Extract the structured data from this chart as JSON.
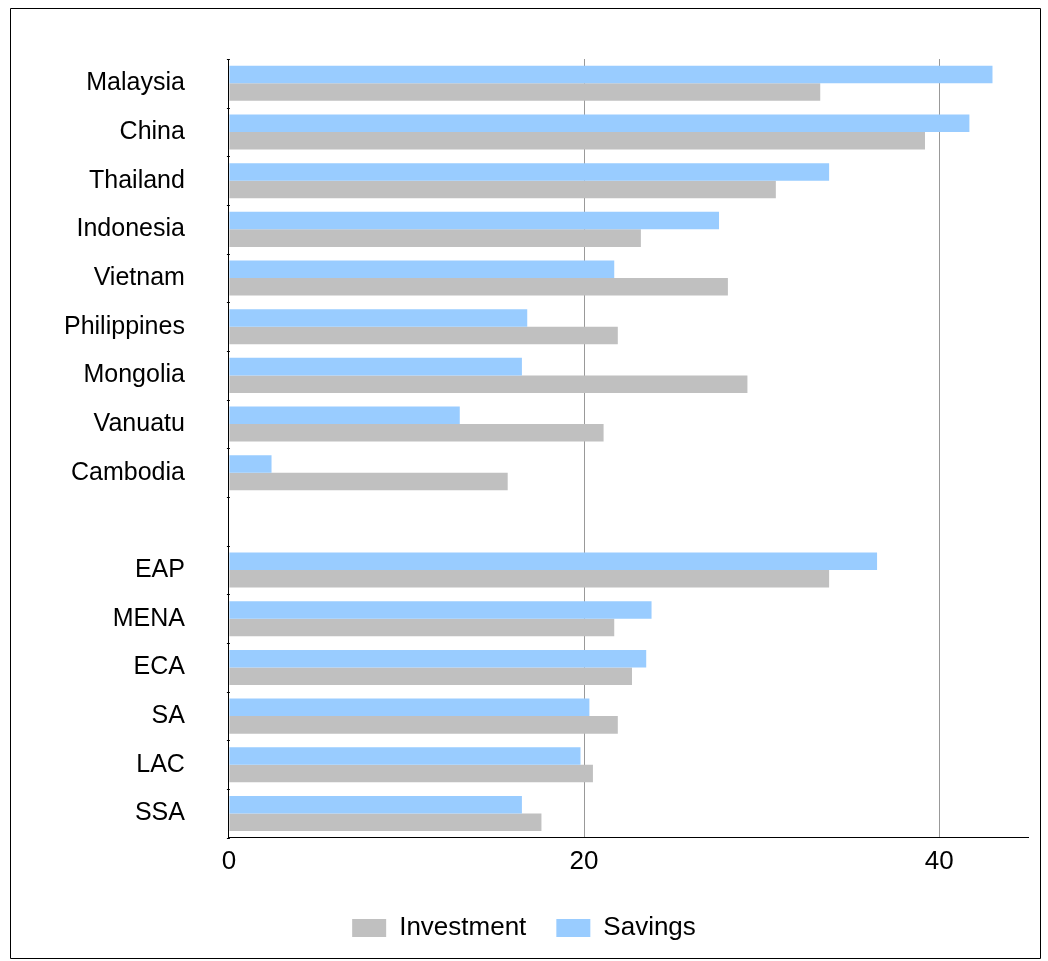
{
  "chart_data": {
    "type": "bar",
    "orientation": "horizontal",
    "categories": [
      "Malaysia",
      "China",
      "Thailand",
      "Indonesia",
      "Vietnam",
      "Philippines",
      "Mongolia",
      "Vanuatu",
      "Cambodia",
      null,
      "EAP",
      "MENA",
      "ECA",
      "SA",
      "LAC",
      "SSA"
    ],
    "series": [
      {
        "name": "Savings",
        "color": "#99ccff",
        "values": [
          43.0,
          41.7,
          33.8,
          27.6,
          21.7,
          16.8,
          16.5,
          13.0,
          2.4,
          null,
          36.5,
          23.8,
          23.5,
          20.3,
          19.8,
          16.5
        ]
      },
      {
        "name": "Investment",
        "color": "#c0c0c0",
        "values": [
          33.3,
          39.2,
          30.8,
          23.2,
          28.1,
          21.9,
          29.2,
          21.1,
          15.7,
          null,
          33.8,
          21.7,
          22.7,
          21.9,
          20.5,
          17.6
        ]
      }
    ],
    "xlim": [
      0,
      45
    ],
    "xticks": [
      0,
      20,
      40
    ],
    "grid": "x",
    "legend": "bottom"
  }
}
